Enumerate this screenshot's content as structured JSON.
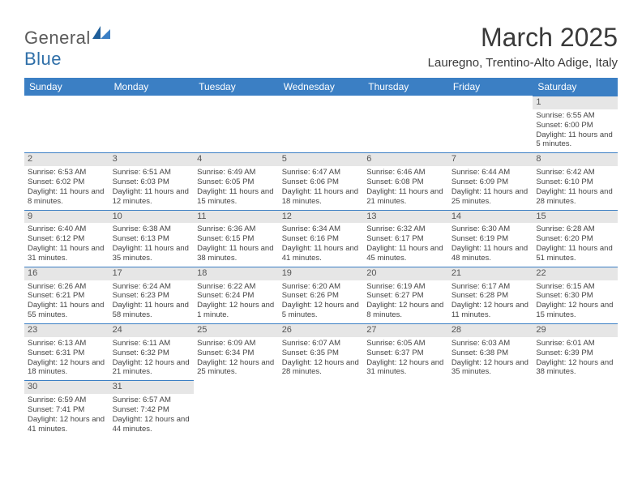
{
  "logo": {
    "text_general": "Genera",
    "text_l": "l",
    "text_blue": "Blue"
  },
  "title": "March 2025",
  "location": "Lauregno, Trentino-Alto Adige, Italy",
  "colors": {
    "header_bg": "#3b7fc4",
    "header_text": "#ffffff",
    "daynum_bg": "#e6e6e6",
    "daynum_border": "#3b7fc4",
    "body_text": "#444444",
    "title_text": "#3a3a3a"
  },
  "day_headers": [
    "Sunday",
    "Monday",
    "Tuesday",
    "Wednesday",
    "Thursday",
    "Friday",
    "Saturday"
  ],
  "weeks": [
    [
      null,
      null,
      null,
      null,
      null,
      null,
      {
        "n": "1",
        "sunrise": "Sunrise: 6:55 AM",
        "sunset": "Sunset: 6:00 PM",
        "daylight": "Daylight: 11 hours and 5 minutes."
      }
    ],
    [
      {
        "n": "2",
        "sunrise": "Sunrise: 6:53 AM",
        "sunset": "Sunset: 6:02 PM",
        "daylight": "Daylight: 11 hours and 8 minutes."
      },
      {
        "n": "3",
        "sunrise": "Sunrise: 6:51 AM",
        "sunset": "Sunset: 6:03 PM",
        "daylight": "Daylight: 11 hours and 12 minutes."
      },
      {
        "n": "4",
        "sunrise": "Sunrise: 6:49 AM",
        "sunset": "Sunset: 6:05 PM",
        "daylight": "Daylight: 11 hours and 15 minutes."
      },
      {
        "n": "5",
        "sunrise": "Sunrise: 6:47 AM",
        "sunset": "Sunset: 6:06 PM",
        "daylight": "Daylight: 11 hours and 18 minutes."
      },
      {
        "n": "6",
        "sunrise": "Sunrise: 6:46 AM",
        "sunset": "Sunset: 6:08 PM",
        "daylight": "Daylight: 11 hours and 21 minutes."
      },
      {
        "n": "7",
        "sunrise": "Sunrise: 6:44 AM",
        "sunset": "Sunset: 6:09 PM",
        "daylight": "Daylight: 11 hours and 25 minutes."
      },
      {
        "n": "8",
        "sunrise": "Sunrise: 6:42 AM",
        "sunset": "Sunset: 6:10 PM",
        "daylight": "Daylight: 11 hours and 28 minutes."
      }
    ],
    [
      {
        "n": "9",
        "sunrise": "Sunrise: 6:40 AM",
        "sunset": "Sunset: 6:12 PM",
        "daylight": "Daylight: 11 hours and 31 minutes."
      },
      {
        "n": "10",
        "sunrise": "Sunrise: 6:38 AM",
        "sunset": "Sunset: 6:13 PM",
        "daylight": "Daylight: 11 hours and 35 minutes."
      },
      {
        "n": "11",
        "sunrise": "Sunrise: 6:36 AM",
        "sunset": "Sunset: 6:15 PM",
        "daylight": "Daylight: 11 hours and 38 minutes."
      },
      {
        "n": "12",
        "sunrise": "Sunrise: 6:34 AM",
        "sunset": "Sunset: 6:16 PM",
        "daylight": "Daylight: 11 hours and 41 minutes."
      },
      {
        "n": "13",
        "sunrise": "Sunrise: 6:32 AM",
        "sunset": "Sunset: 6:17 PM",
        "daylight": "Daylight: 11 hours and 45 minutes."
      },
      {
        "n": "14",
        "sunrise": "Sunrise: 6:30 AM",
        "sunset": "Sunset: 6:19 PM",
        "daylight": "Daylight: 11 hours and 48 minutes."
      },
      {
        "n": "15",
        "sunrise": "Sunrise: 6:28 AM",
        "sunset": "Sunset: 6:20 PM",
        "daylight": "Daylight: 11 hours and 51 minutes."
      }
    ],
    [
      {
        "n": "16",
        "sunrise": "Sunrise: 6:26 AM",
        "sunset": "Sunset: 6:21 PM",
        "daylight": "Daylight: 11 hours and 55 minutes."
      },
      {
        "n": "17",
        "sunrise": "Sunrise: 6:24 AM",
        "sunset": "Sunset: 6:23 PM",
        "daylight": "Daylight: 11 hours and 58 minutes."
      },
      {
        "n": "18",
        "sunrise": "Sunrise: 6:22 AM",
        "sunset": "Sunset: 6:24 PM",
        "daylight": "Daylight: 12 hours and 1 minute."
      },
      {
        "n": "19",
        "sunrise": "Sunrise: 6:20 AM",
        "sunset": "Sunset: 6:26 PM",
        "daylight": "Daylight: 12 hours and 5 minutes."
      },
      {
        "n": "20",
        "sunrise": "Sunrise: 6:19 AM",
        "sunset": "Sunset: 6:27 PM",
        "daylight": "Daylight: 12 hours and 8 minutes."
      },
      {
        "n": "21",
        "sunrise": "Sunrise: 6:17 AM",
        "sunset": "Sunset: 6:28 PM",
        "daylight": "Daylight: 12 hours and 11 minutes."
      },
      {
        "n": "22",
        "sunrise": "Sunrise: 6:15 AM",
        "sunset": "Sunset: 6:30 PM",
        "daylight": "Daylight: 12 hours and 15 minutes."
      }
    ],
    [
      {
        "n": "23",
        "sunrise": "Sunrise: 6:13 AM",
        "sunset": "Sunset: 6:31 PM",
        "daylight": "Daylight: 12 hours and 18 minutes."
      },
      {
        "n": "24",
        "sunrise": "Sunrise: 6:11 AM",
        "sunset": "Sunset: 6:32 PM",
        "daylight": "Daylight: 12 hours and 21 minutes."
      },
      {
        "n": "25",
        "sunrise": "Sunrise: 6:09 AM",
        "sunset": "Sunset: 6:34 PM",
        "daylight": "Daylight: 12 hours and 25 minutes."
      },
      {
        "n": "26",
        "sunrise": "Sunrise: 6:07 AM",
        "sunset": "Sunset: 6:35 PM",
        "daylight": "Daylight: 12 hours and 28 minutes."
      },
      {
        "n": "27",
        "sunrise": "Sunrise: 6:05 AM",
        "sunset": "Sunset: 6:37 PM",
        "daylight": "Daylight: 12 hours and 31 minutes."
      },
      {
        "n": "28",
        "sunrise": "Sunrise: 6:03 AM",
        "sunset": "Sunset: 6:38 PM",
        "daylight": "Daylight: 12 hours and 35 minutes."
      },
      {
        "n": "29",
        "sunrise": "Sunrise: 6:01 AM",
        "sunset": "Sunset: 6:39 PM",
        "daylight": "Daylight: 12 hours and 38 minutes."
      }
    ],
    [
      {
        "n": "30",
        "sunrise": "Sunrise: 6:59 AM",
        "sunset": "Sunset: 7:41 PM",
        "daylight": "Daylight: 12 hours and 41 minutes."
      },
      {
        "n": "31",
        "sunrise": "Sunrise: 6:57 AM",
        "sunset": "Sunset: 7:42 PM",
        "daylight": "Daylight: 12 hours and 44 minutes."
      },
      null,
      null,
      null,
      null,
      null
    ]
  ]
}
